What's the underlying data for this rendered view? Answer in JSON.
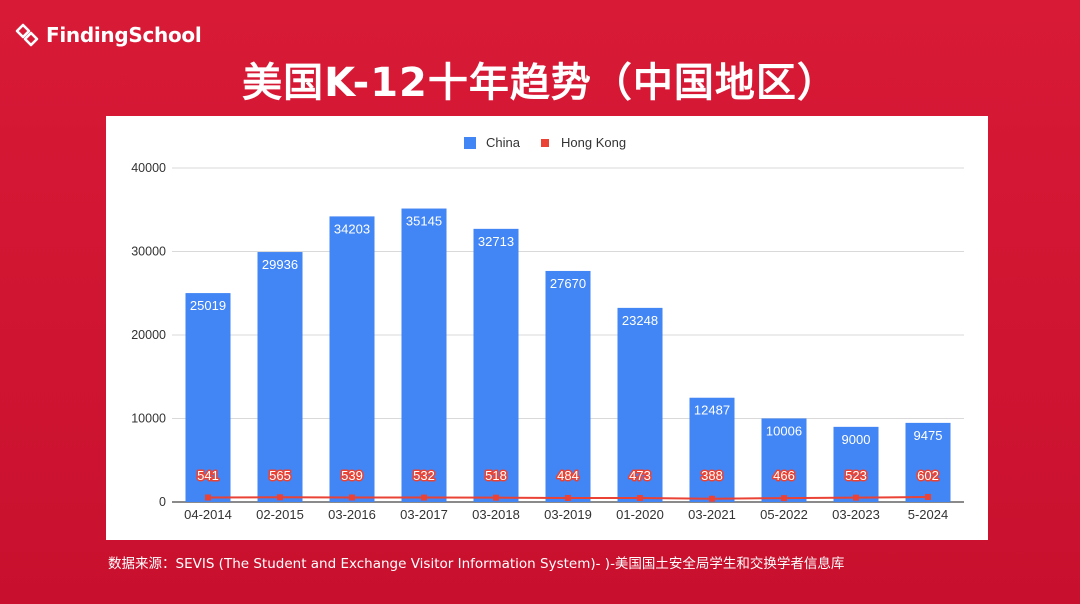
{
  "brand": {
    "name": "FindingSchool"
  },
  "page": {
    "title": "美国K-12十年趋势（中国地区）",
    "source": "数据来源：SEVIS (The Student and Exchange Visitor Information System)- )-美国国土安全局学生和交换学者信息库"
  },
  "colors": {
    "background": "#c8102e",
    "china": "#4285f4",
    "hong_kong": "#ea4335"
  },
  "chart_data": {
    "type": "bar",
    "categories": [
      "04-2014",
      "02-2015",
      "03-2016",
      "03-2017",
      "03-2018",
      "03-2019",
      "01-2020",
      "03-2021",
      "05-2022",
      "03-2023",
      "5-2024"
    ],
    "series": [
      {
        "name": "China",
        "type": "bar",
        "color": "#4285f4",
        "values": [
          25019,
          29936,
          34203,
          35145,
          32713,
          27670,
          23248,
          12487,
          10006,
          9000,
          9475
        ]
      },
      {
        "name": "Hong Kong",
        "type": "line",
        "color": "#ea4335",
        "values": [
          541,
          565,
          539,
          532,
          518,
          484,
          473,
          388,
          466,
          523,
          602
        ]
      }
    ],
    "ylim": [
      0,
      40000
    ],
    "yticks": [
      0,
      10000,
      20000,
      30000,
      40000
    ],
    "grid": true,
    "legend": "top-center",
    "data_labels": true
  }
}
